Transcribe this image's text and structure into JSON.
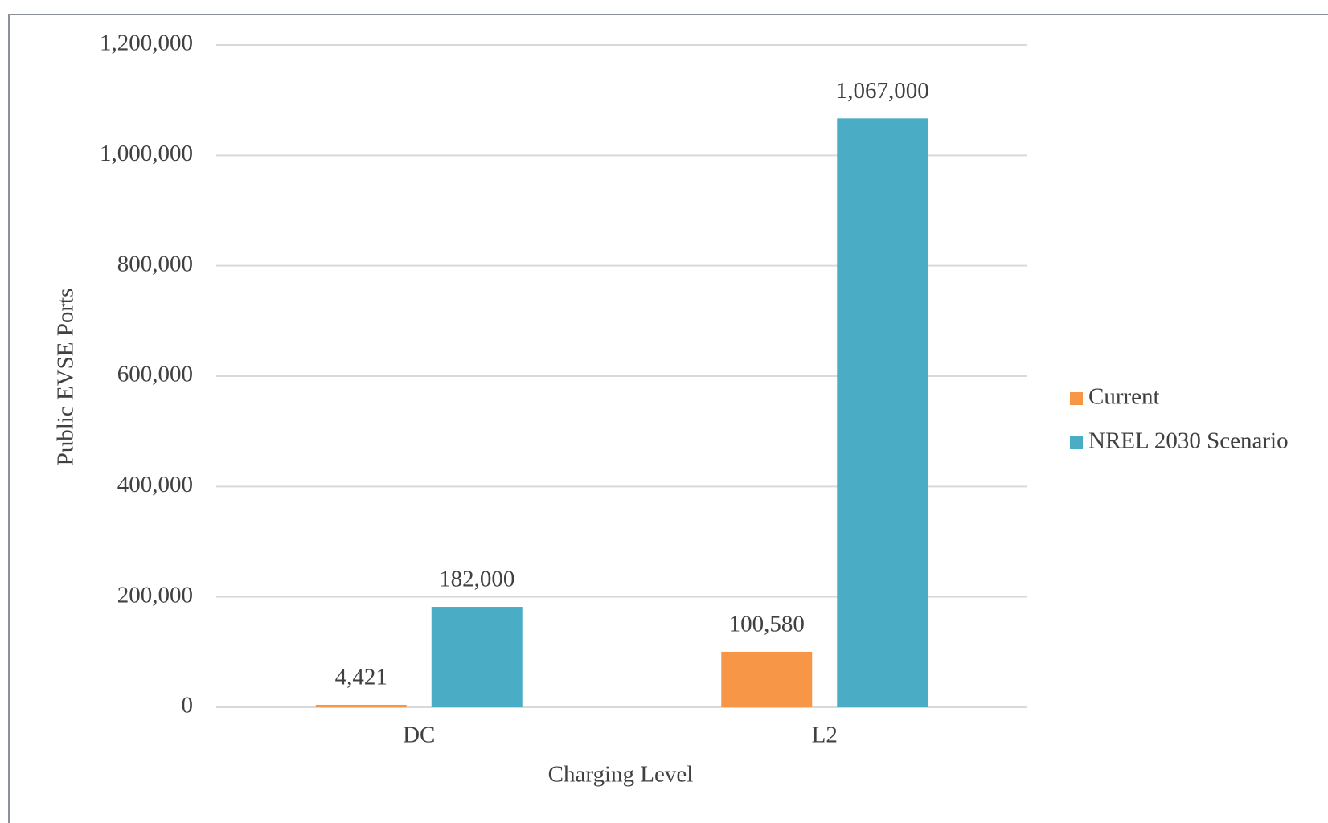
{
  "chart_data": {
    "type": "bar",
    "categories": [
      "DC",
      "L2"
    ],
    "series": [
      {
        "name": "Current",
        "color": "#f79646",
        "values": [
          4421,
          100580
        ],
        "value_labels": [
          "4,421",
          "100,580"
        ]
      },
      {
        "name": "NREL 2030 Scenario",
        "color": "#4bacc6",
        "values": [
          182000,
          1067000
        ],
        "value_labels": [
          "182,000",
          "1,067,000"
        ]
      }
    ],
    "x_label": "Charging Level",
    "y_label": "Public EVSE Ports",
    "ylim": [
      0,
      1200000
    ],
    "yticks": [
      0,
      {
        "value": 200000,
        "label": "200,000"
      },
      {
        "value": 400000,
        "label": "400,000"
      },
      {
        "value": 600000,
        "label": "600,000"
      },
      {
        "value": 800000,
        "label": "800,000"
      },
      {
        "value": 1000000,
        "label": "1,000,000"
      },
      {
        "value": 1200000,
        "label": "1,200,000"
      }
    ],
    "grid": true,
    "legend": "right"
  }
}
